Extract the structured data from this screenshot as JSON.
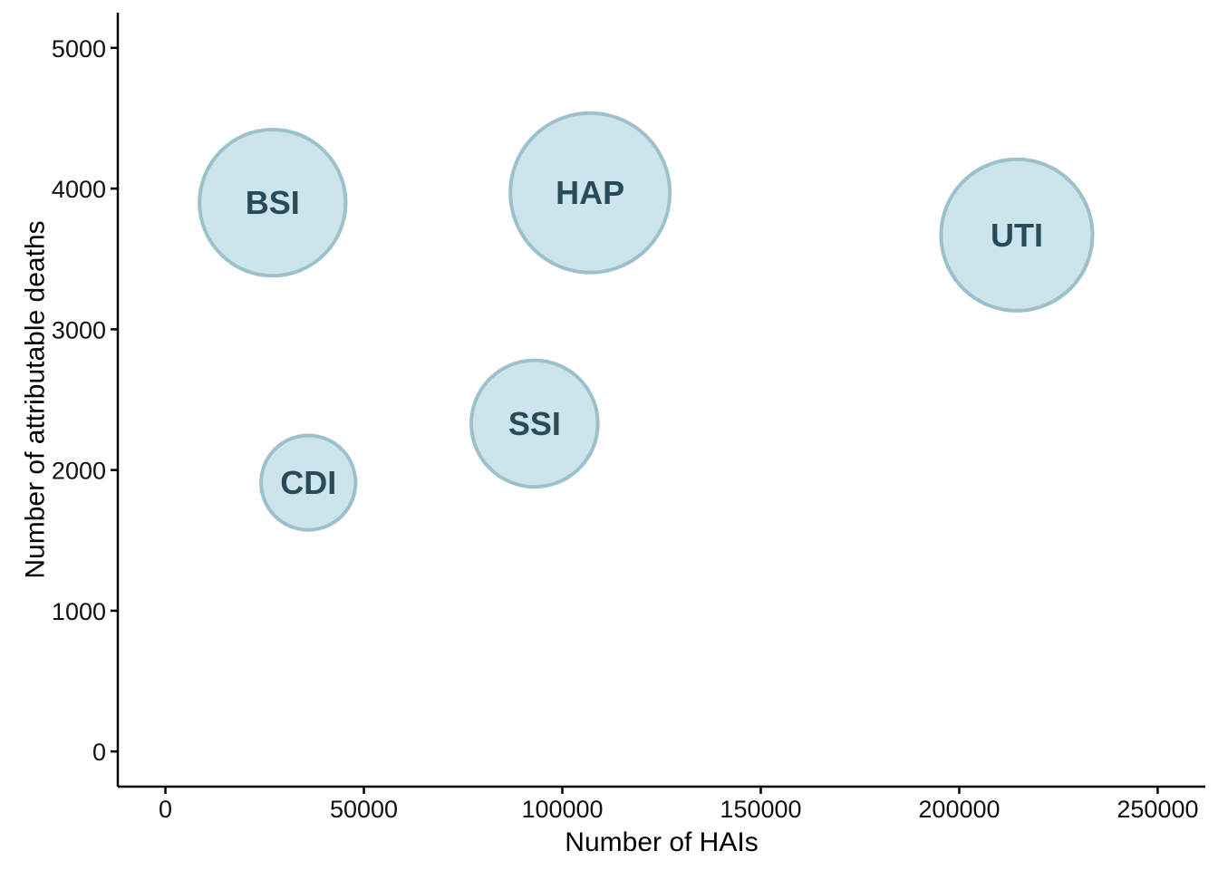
{
  "chart_data": {
    "type": "scatter",
    "title": "",
    "xlabel": "Number of HAIs",
    "ylabel": "Number of attributable deaths",
    "xlim": [
      -12000,
      262000
    ],
    "ylim": [
      -250,
      5250
    ],
    "xticks": [
      0,
      50000,
      100000,
      150000,
      200000,
      250000
    ],
    "xtick_labels": [
      "0",
      "50000",
      "100000",
      "150000",
      "200000",
      "250000"
    ],
    "yticks": [
      0,
      1000,
      2000,
      3000,
      4000,
      5000
    ],
    "ytick_labels": [
      "0",
      "1000",
      "2000",
      "3000",
      "4000",
      "5000"
    ],
    "grid": false,
    "legend": "none",
    "points": [
      {
        "label": "BSI",
        "x": 27000,
        "y": 3900,
        "size": 34000
      },
      {
        "label": "HAP",
        "x": 107000,
        "y": 3970,
        "size": 40500
      },
      {
        "label": "UTI",
        "x": 214500,
        "y": 3670,
        "size": 36500
      },
      {
        "label": "SSI",
        "x": 93000,
        "y": 2330,
        "size": 25500
      },
      {
        "label": "CDI",
        "x": 36000,
        "y": 1910,
        "size": 14200
      }
    ],
    "colors": {
      "fill": "#cde4eb",
      "stroke": "#9dc1cc",
      "label": "#274b5a",
      "axis": "#000000"
    }
  }
}
